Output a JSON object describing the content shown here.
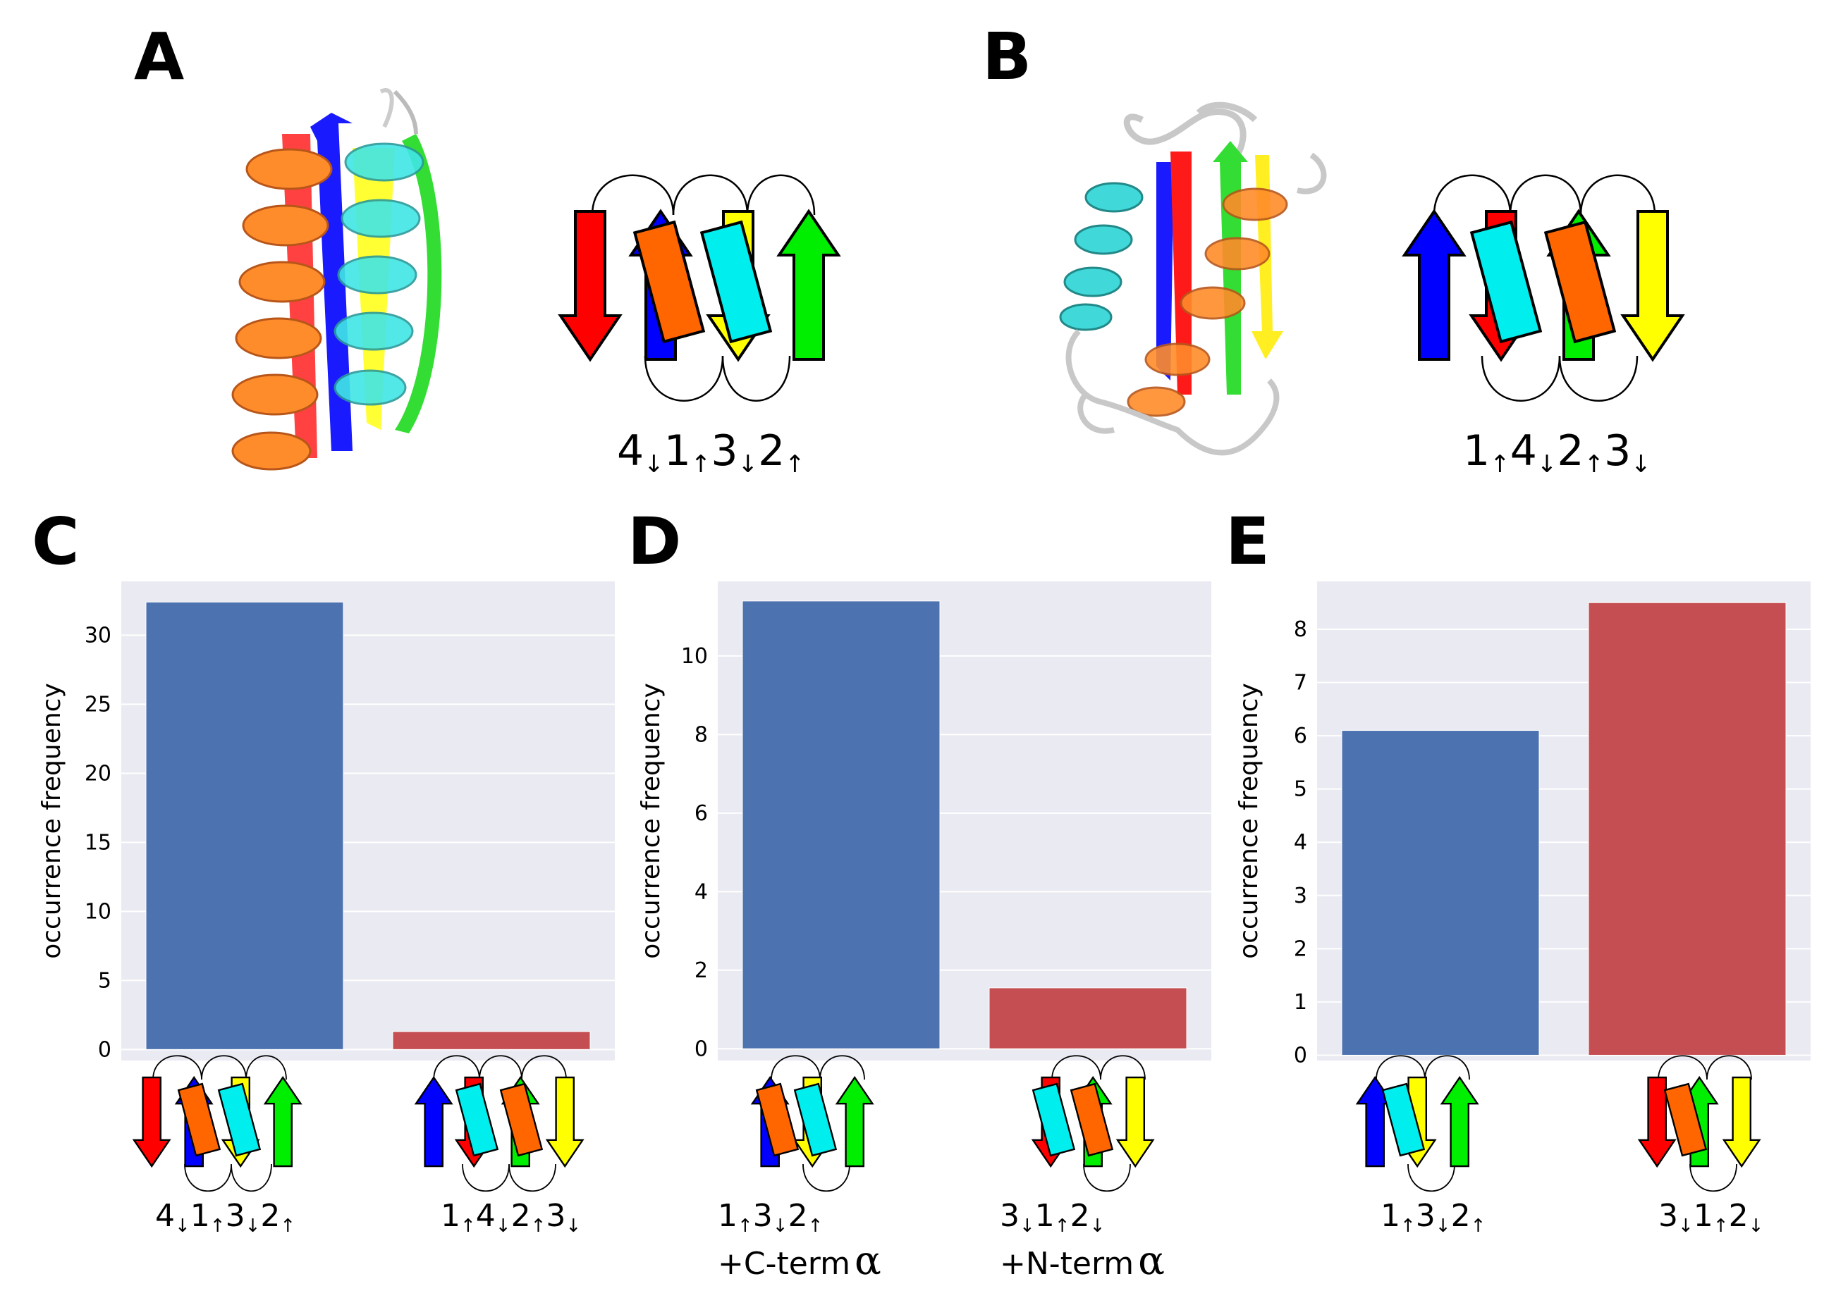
{
  "panels": {
    "A": {
      "letter": "A",
      "topology": {
        "s1": "4",
        "a1": "↓",
        "s2": "1",
        "a2": "↑",
        "s3": "3",
        "a3": "↓",
        "s4": "2",
        "a4": "↑"
      }
    },
    "B": {
      "letter": "B",
      "topology": {
        "s1": "1",
        "a1": "↑",
        "s2": "4",
        "a2": "↓",
        "s3": "2",
        "a3": "↑",
        "s4": "3",
        "a4": "↓"
      }
    },
    "C": {
      "letter": "C"
    },
    "D": {
      "letter": "D"
    },
    "E": {
      "letter": "E"
    }
  },
  "colors": {
    "blue_bar": "#4c72b0",
    "red_bar": "#c44e52",
    "plot_bg": "#eaeaf2",
    "strand_red": "#ff0000",
    "strand_blue": "#0000ff",
    "strand_yellow": "#ffff00",
    "strand_green": "#00ee00",
    "helix_orange": "#ff6600",
    "helix_cyan": "#00eeee"
  },
  "chart_data": [
    {
      "panel": "C",
      "type": "bar",
      "categories": [
        "4↓1↑3↓2↑",
        "1↑4↓2↑3↓"
      ],
      "values": [
        32.4,
        1.3
      ],
      "ylabel": "occurrence frequency",
      "ylim": [
        -0.8,
        33.9
      ],
      "yticks": [
        0,
        5,
        10,
        15,
        20,
        25,
        30
      ],
      "grid": true
    },
    {
      "panel": "D",
      "type": "bar",
      "categories": [
        "1↑3↓2↑ +C-term α",
        "3↓1↑2↓ +N-term α"
      ],
      "values": [
        11.4,
        1.55
      ],
      "ylabel": "occurrence frequency",
      "ylim": [
        -0.3,
        11.9
      ],
      "yticks": [
        0,
        2,
        4,
        6,
        8,
        10
      ],
      "grid": true
    },
    {
      "panel": "E",
      "type": "bar",
      "categories": [
        "1↑3↓2↑",
        "3↓1↑2↓"
      ],
      "values": [
        6.1,
        8.5
      ],
      "ylabel": "occurrence frequency",
      "ylim": [
        -0.1,
        8.9
      ],
      "yticks": [
        0,
        1,
        2,
        3,
        4,
        5,
        6,
        7,
        8
      ],
      "grid": true
    }
  ],
  "category_labels": {
    "C": [
      {
        "s1": "4",
        "a1": "↓",
        "s2": "1",
        "a2": "↑",
        "s3": "3",
        "a3": "↓",
        "s4": "2",
        "a4": "↑"
      },
      {
        "s1": "1",
        "a1": "↑",
        "s2": "4",
        "a2": "↓",
        "s3": "2",
        "a3": "↑",
        "s4": "3",
        "a4": "↓"
      }
    ],
    "D": [
      {
        "s1": "1",
        "a1": "↑",
        "s2": "3",
        "a2": "↓",
        "s3": "2",
        "a3": "↑",
        "line2": "+C-term",
        "alpha": "α"
      },
      {
        "s1": "3",
        "a1": "↓",
        "s2": "1",
        "a2": "↑",
        "s3": "2",
        "a3": "↓",
        "line2": "+N-term",
        "alpha": "α"
      }
    ],
    "E": [
      {
        "s1": "1",
        "a1": "↑",
        "s2": "3",
        "a2": "↓",
        "s3": "2",
        "a3": "↑"
      },
      {
        "s1": "3",
        "a1": "↓",
        "s2": "1",
        "a2": "↑",
        "s3": "2",
        "a3": "↓"
      }
    ]
  }
}
